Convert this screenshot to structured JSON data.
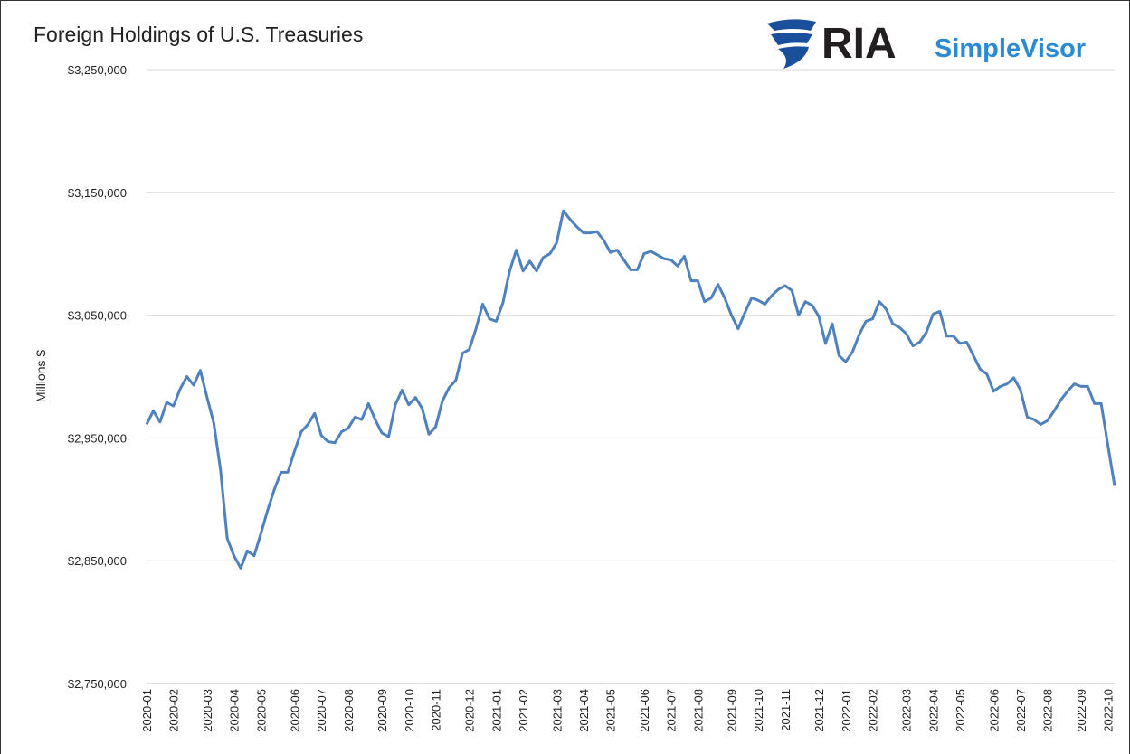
{
  "chart_data": {
    "type": "line",
    "title": "Foreign Holdings of U.S. Treasuries",
    "ylabel": "Millions $",
    "logo": [
      "RIA",
      "SimpleVisor"
    ],
    "categories": [
      "2020-01",
      null,
      null,
      null,
      "2020-02",
      null,
      null,
      null,
      null,
      "2020-03",
      null,
      null,
      null,
      "2020-04",
      null,
      null,
      null,
      "2020-05",
      null,
      null,
      null,
      null,
      "2020-06",
      null,
      null,
      null,
      "2020-07",
      null,
      null,
      null,
      "2020-08",
      null,
      null,
      null,
      null,
      "2020-09",
      null,
      null,
      null,
      "2020-10",
      null,
      null,
      null,
      "2020-11",
      null,
      null,
      null,
      null,
      "2020-12",
      null,
      null,
      null,
      "2021-01",
      null,
      null,
      null,
      "2021-02",
      null,
      null,
      null,
      null,
      "2021-03",
      null,
      null,
      null,
      "2021-04",
      null,
      null,
      null,
      "2021-05",
      null,
      null,
      null,
      null,
      "2021-06",
      null,
      null,
      null,
      "2021-07",
      null,
      null,
      null,
      "2021-08",
      null,
      null,
      null,
      null,
      "2021-09",
      null,
      null,
      null,
      "2021-10",
      null,
      null,
      null,
      "2021-11",
      null,
      null,
      null,
      null,
      "2021-12",
      null,
      null,
      null,
      "2022-01",
      null,
      null,
      null,
      "2022-02",
      null,
      null,
      null,
      null,
      "2022-03",
      null,
      null,
      null,
      "2022-04",
      null,
      null,
      null,
      "2022-05",
      null,
      null,
      null,
      null,
      "2022-06",
      null,
      null,
      null,
      "2022-07",
      null,
      null,
      null,
      "2022-08",
      null,
      null,
      null,
      null,
      "2022-09",
      null,
      null,
      null,
      "2022-10",
      null
    ],
    "series": [
      {
        "name": "Foreign Holdings",
        "color": "#4f81bd",
        "values": [
          2961000,
          2972000,
          2963000,
          2979000,
          2976000,
          2990000,
          3000000,
          2993000,
          3005000,
          2983000,
          2962000,
          2924000,
          2868000,
          2854000,
          2844000,
          2858000,
          2854000,
          2872000,
          2891000,
          2908000,
          2922000,
          2922000,
          2939000,
          2955000,
          2961000,
          2970000,
          2952000,
          2947000,
          2946000,
          2955000,
          2958000,
          2967000,
          2965000,
          2978000,
          2965000,
          2954000,
          2951000,
          2977000,
          2989000,
          2977000,
          2983000,
          2974000,
          2953000,
          2959000,
          2980000,
          2991000,
          2997000,
          3019000,
          3022000,
          3039000,
          3059000,
          3047000,
          3045000,
          3060000,
          3086000,
          3103000,
          3086000,
          3094000,
          3086000,
          3097000,
          3100000,
          3109000,
          3135000,
          3128000,
          3122000,
          3117000,
          3117000,
          3118000,
          3111000,
          3101000,
          3103000,
          3095000,
          3087000,
          3087000,
          3100000,
          3102000,
          3099000,
          3096000,
          3095000,
          3090000,
          3098000,
          3078000,
          3078000,
          3061000,
          3064000,
          3075000,
          3064000,
          3050000,
          3039000,
          3052000,
          3064000,
          3062000,
          3059000,
          3066000,
          3071000,
          3074000,
          3070000,
          3050000,
          3061000,
          3058000,
          3049000,
          3027000,
          3043000,
          3017000,
          3012000,
          3020000,
          3034000,
          3045000,
          3047000,
          3061000,
          3055000,
          3043000,
          3040000,
          3035000,
          3025000,
          3028000,
          3036000,
          3051000,
          3053000,
          3033000,
          3033000,
          3027000,
          3028000,
          3017000,
          3006000,
          3002000,
          2988000,
          2992000,
          2994000,
          2999000,
          2989000,
          2967000,
          2965000,
          2961000,
          2964000,
          2972000,
          2981000,
          2988000,
          2994000,
          2992000,
          2992000,
          2978000,
          2978000,
          2944000,
          2911000
        ]
      }
    ],
    "ylim": [
      2750000,
      3250000
    ],
    "yticks": [
      {
        "value": 2750000,
        "label": "$2,750,000"
      },
      {
        "value": 2850000,
        "label": "$2,850,000"
      },
      {
        "value": 2950000,
        "label": "$2,950,000"
      },
      {
        "value": 3050000,
        "label": "$3,050,000"
      },
      {
        "value": 3150000,
        "label": "$3,150,000"
      },
      {
        "value": 3250000,
        "label": "$3,250,000"
      }
    ],
    "grid": true
  }
}
